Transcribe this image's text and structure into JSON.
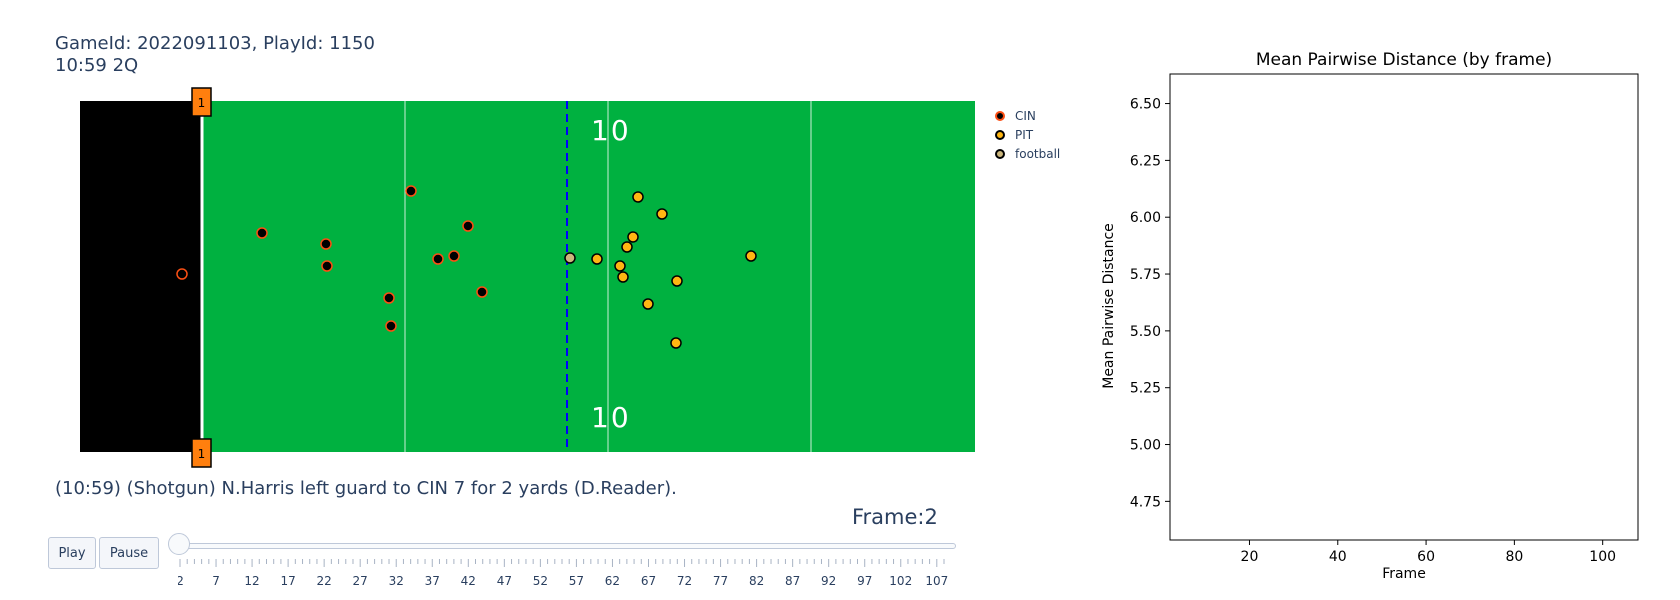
{
  "header": {
    "game_title": "GameId: 2022091103, PlayId: 1150",
    "clock": "10:59 2Q"
  },
  "play_description": "(10:59) (Shotgun) N.Harris left guard to CIN 7 for 2 yards (D.Reader).",
  "frame_label": "Frame:2",
  "controls": {
    "play_label": "Play",
    "pause_label": "Pause"
  },
  "slider": {
    "current": 2,
    "tick_labels": [
      "2",
      "7",
      "12",
      "17",
      "22",
      "27",
      "32",
      "37",
      "42",
      "47",
      "52",
      "57",
      "62",
      "67",
      "72",
      "77",
      "82",
      "87",
      "92",
      "97",
      "102",
      "107"
    ]
  },
  "field": {
    "yard_numbers_top": "10",
    "yard_numbers_bottom": "10",
    "pylon_top": "1",
    "pylon_bottom": "1",
    "colors": {
      "turf": "#00b140",
      "endzone": "#000000",
      "scrimmage": "#0000ff",
      "cin": "#fb4f14",
      "pit": "#ffb612",
      "football": "#cbb67c"
    }
  },
  "legend": [
    {
      "name": "CIN",
      "color": "#fb4f14"
    },
    {
      "name": "PIT",
      "color": "#ffb612"
    },
    {
      "name": "football",
      "color": "#cbb67c"
    }
  ],
  "chart_data": {
    "type": "line",
    "title": "Mean Pairwise Distance (by frame)",
    "xlabel": "Frame",
    "ylabel": "Mean Pairwise Distance",
    "xlim": [
      2,
      108
    ],
    "ylim": [
      4.58,
      6.63
    ],
    "x_ticks": [
      20,
      40,
      60,
      80,
      100
    ],
    "y_ticks": [
      "4.75",
      "5.00",
      "5.25",
      "5.50",
      "5.75",
      "6.00",
      "6.25",
      "6.50"
    ],
    "series": []
  }
}
